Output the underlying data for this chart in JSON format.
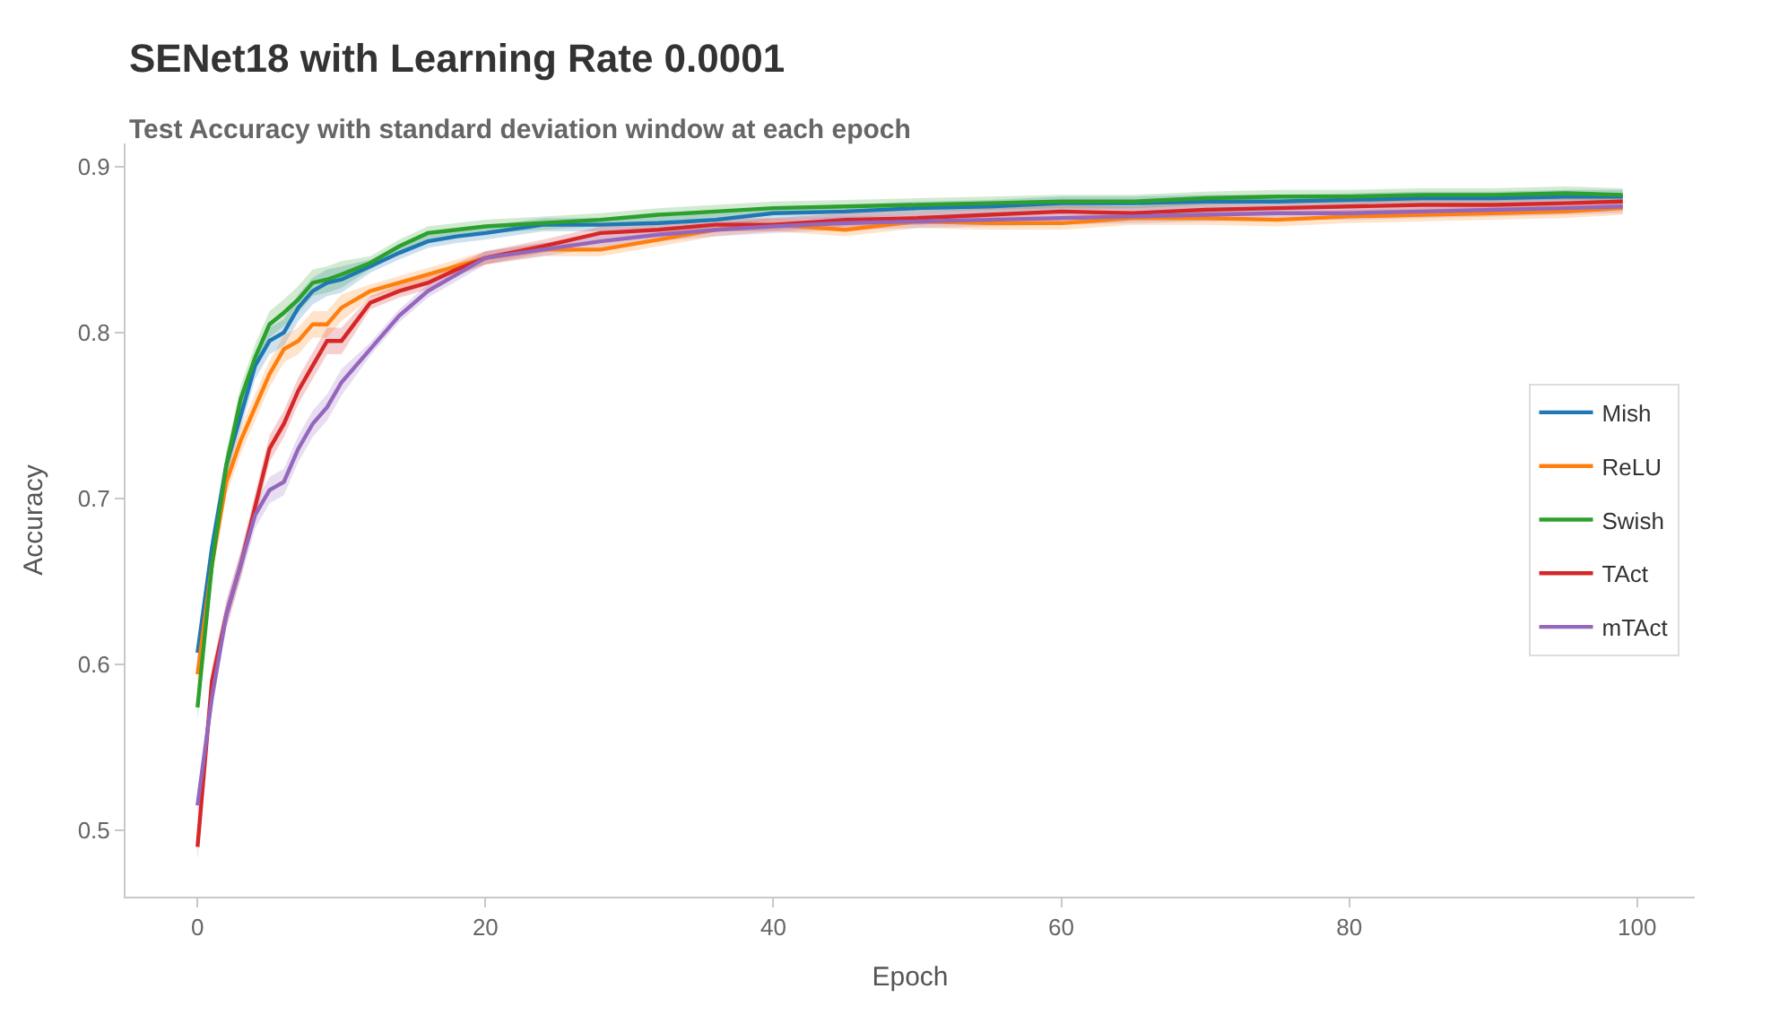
{
  "chart_data": {
    "type": "line",
    "title": "SENet18 with Learning Rate 0.0001",
    "subtitle": "Test Accuracy with standard deviation window at each epoch",
    "xlabel": "Epoch",
    "ylabel": "Accuracy",
    "x": [
      0,
      1,
      2,
      3,
      4,
      5,
      6,
      7,
      8,
      9,
      10,
      12,
      14,
      16,
      18,
      20,
      24,
      28,
      32,
      36,
      40,
      45,
      50,
      55,
      60,
      65,
      70,
      75,
      80,
      85,
      90,
      95,
      99
    ],
    "xlim": [
      -5,
      104
    ],
    "ylim": [
      0.46,
      0.914
    ],
    "xticks": [
      0,
      20,
      40,
      60,
      80,
      100
    ],
    "yticks": [
      0.5,
      0.6,
      0.7,
      0.8,
      0.9
    ],
    "grid": false,
    "legend": "right",
    "marker": "none",
    "line_style": "solid",
    "series": [
      {
        "name": "Mish",
        "color": "#1f77b4",
        "values": [
          0.607,
          0.67,
          0.72,
          0.75,
          0.78,
          0.795,
          0.8,
          0.815,
          0.825,
          0.83,
          0.832,
          0.84,
          0.848,
          0.855,
          0.858,
          0.86,
          0.865,
          0.865,
          0.866,
          0.868,
          0.872,
          0.873,
          0.875,
          0.876,
          0.878,
          0.878,
          0.879,
          0.879,
          0.88,
          0.881,
          0.881,
          0.882,
          0.882
        ],
        "lower": [
          0.599,
          0.662,
          0.712,
          0.742,
          0.772,
          0.787,
          0.792,
          0.807,
          0.817,
          0.822,
          0.824,
          0.836,
          0.844,
          0.851,
          0.854,
          0.856,
          0.861,
          0.861,
          0.862,
          0.864,
          0.868,
          0.869,
          0.871,
          0.872,
          0.874,
          0.874,
          0.875,
          0.875,
          0.876,
          0.877,
          0.877,
          0.878,
          0.878
        ],
        "upper": [
          0.615,
          0.678,
          0.728,
          0.758,
          0.788,
          0.803,
          0.808,
          0.823,
          0.833,
          0.838,
          0.84,
          0.844,
          0.852,
          0.859,
          0.862,
          0.864,
          0.869,
          0.869,
          0.87,
          0.872,
          0.876,
          0.877,
          0.879,
          0.88,
          0.882,
          0.882,
          0.883,
          0.883,
          0.884,
          0.885,
          0.885,
          0.886,
          0.886
        ]
      },
      {
        "name": "ReLU",
        "color": "#ff7f0e",
        "values": [
          0.594,
          0.66,
          0.71,
          0.735,
          0.755,
          0.775,
          0.79,
          0.795,
          0.805,
          0.805,
          0.815,
          0.825,
          0.83,
          0.835,
          0.84,
          0.845,
          0.85,
          0.85,
          0.856,
          0.862,
          0.865,
          0.862,
          0.867,
          0.866,
          0.866,
          0.869,
          0.869,
          0.868,
          0.87,
          0.871,
          0.872,
          0.873,
          0.875
        ],
        "lower": [
          0.586,
          0.652,
          0.702,
          0.727,
          0.747,
          0.767,
          0.782,
          0.787,
          0.797,
          0.797,
          0.807,
          0.821,
          0.826,
          0.831,
          0.836,
          0.841,
          0.846,
          0.846,
          0.852,
          0.858,
          0.861,
          0.858,
          0.863,
          0.862,
          0.862,
          0.865,
          0.865,
          0.864,
          0.866,
          0.867,
          0.868,
          0.869,
          0.871
        ],
        "upper": [
          0.602,
          0.668,
          0.718,
          0.743,
          0.763,
          0.783,
          0.798,
          0.803,
          0.813,
          0.813,
          0.823,
          0.829,
          0.834,
          0.839,
          0.844,
          0.849,
          0.854,
          0.854,
          0.86,
          0.866,
          0.869,
          0.866,
          0.871,
          0.87,
          0.87,
          0.873,
          0.873,
          0.872,
          0.874,
          0.875,
          0.876,
          0.877,
          0.879
        ]
      },
      {
        "name": "Swish",
        "color": "#2ca02c",
        "values": [
          0.574,
          0.66,
          0.72,
          0.76,
          0.785,
          0.805,
          0.812,
          0.82,
          0.83,
          0.832,
          0.835,
          0.842,
          0.852,
          0.86,
          0.862,
          0.864,
          0.866,
          0.868,
          0.871,
          0.873,
          0.875,
          0.876,
          0.877,
          0.878,
          0.879,
          0.879,
          0.881,
          0.882,
          0.882,
          0.883,
          0.883,
          0.884,
          0.883
        ],
        "lower": [
          0.566,
          0.652,
          0.712,
          0.752,
          0.777,
          0.797,
          0.804,
          0.812,
          0.822,
          0.824,
          0.827,
          0.838,
          0.848,
          0.856,
          0.858,
          0.86,
          0.862,
          0.864,
          0.867,
          0.869,
          0.871,
          0.872,
          0.873,
          0.874,
          0.875,
          0.875,
          0.877,
          0.878,
          0.878,
          0.879,
          0.879,
          0.88,
          0.879
        ],
        "upper": [
          0.582,
          0.668,
          0.728,
          0.768,
          0.793,
          0.813,
          0.82,
          0.828,
          0.838,
          0.84,
          0.843,
          0.846,
          0.856,
          0.864,
          0.866,
          0.868,
          0.87,
          0.872,
          0.875,
          0.877,
          0.879,
          0.88,
          0.881,
          0.882,
          0.883,
          0.883,
          0.885,
          0.886,
          0.886,
          0.887,
          0.887,
          0.888,
          0.887
        ]
      },
      {
        "name": "TAct",
        "color": "#d62728",
        "values": [
          0.49,
          0.59,
          0.63,
          0.66,
          0.695,
          0.73,
          0.745,
          0.765,
          0.78,
          0.795,
          0.795,
          0.818,
          0.825,
          0.83,
          0.838,
          0.845,
          0.852,
          0.86,
          0.862,
          0.865,
          0.865,
          0.868,
          0.869,
          0.871,
          0.873,
          0.872,
          0.874,
          0.875,
          0.876,
          0.877,
          0.877,
          0.878,
          0.879
        ],
        "lower": [
          0.482,
          0.582,
          0.622,
          0.652,
          0.687,
          0.722,
          0.737,
          0.757,
          0.772,
          0.787,
          0.787,
          0.814,
          0.821,
          0.826,
          0.834,
          0.841,
          0.848,
          0.856,
          0.858,
          0.861,
          0.861,
          0.864,
          0.865,
          0.867,
          0.869,
          0.868,
          0.87,
          0.871,
          0.872,
          0.873,
          0.873,
          0.874,
          0.875
        ],
        "upper": [
          0.498,
          0.598,
          0.638,
          0.668,
          0.703,
          0.738,
          0.753,
          0.773,
          0.788,
          0.803,
          0.803,
          0.822,
          0.829,
          0.834,
          0.842,
          0.849,
          0.856,
          0.864,
          0.866,
          0.869,
          0.869,
          0.872,
          0.873,
          0.875,
          0.877,
          0.876,
          0.878,
          0.879,
          0.88,
          0.881,
          0.881,
          0.882,
          0.883
        ]
      },
      {
        "name": "mTAct",
        "color": "#9467bd",
        "values": [
          0.515,
          0.58,
          0.63,
          0.66,
          0.69,
          0.705,
          0.71,
          0.73,
          0.745,
          0.755,
          0.77,
          0.79,
          0.81,
          0.825,
          0.835,
          0.845,
          0.85,
          0.855,
          0.859,
          0.862,
          0.864,
          0.866,
          0.867,
          0.868,
          0.869,
          0.87,
          0.871,
          0.872,
          0.872,
          0.873,
          0.874,
          0.875,
          0.876
        ],
        "lower": [
          0.507,
          0.572,
          0.622,
          0.652,
          0.682,
          0.697,
          0.702,
          0.722,
          0.737,
          0.747,
          0.762,
          0.786,
          0.806,
          0.821,
          0.831,
          0.841,
          0.846,
          0.851,
          0.855,
          0.858,
          0.86,
          0.862,
          0.863,
          0.864,
          0.865,
          0.866,
          0.867,
          0.868,
          0.868,
          0.869,
          0.87,
          0.871,
          0.872
        ],
        "upper": [
          0.523,
          0.588,
          0.638,
          0.668,
          0.698,
          0.713,
          0.718,
          0.738,
          0.753,
          0.763,
          0.778,
          0.794,
          0.814,
          0.829,
          0.839,
          0.849,
          0.854,
          0.859,
          0.863,
          0.866,
          0.868,
          0.87,
          0.871,
          0.872,
          0.873,
          0.874,
          0.875,
          0.876,
          0.876,
          0.877,
          0.878,
          0.879,
          0.88
        ]
      }
    ]
  }
}
